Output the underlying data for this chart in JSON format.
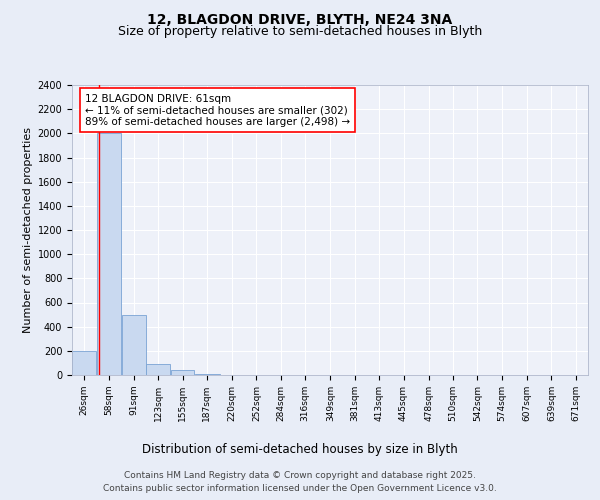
{
  "title1": "12, BLAGDON DRIVE, BLYTH, NE24 3NA",
  "title2": "Size of property relative to semi-detached houses in Blyth",
  "xlabel": "Distribution of semi-detached houses by size in Blyth",
  "ylabel": "Number of semi-detached properties",
  "bins": [
    26,
    58,
    91,
    123,
    155,
    187,
    220,
    252,
    284,
    316,
    349,
    381,
    413,
    445,
    478,
    510,
    542,
    574,
    607,
    639,
    671
  ],
  "counts": [
    200,
    2000,
    500,
    90,
    40,
    5,
    3,
    2,
    1,
    1,
    1,
    0,
    0,
    1,
    0,
    0,
    0,
    0,
    0,
    0
  ],
  "bar_color": "#c9d9f0",
  "bar_edge_color": "#7aa3d4",
  "red_line_x": 61,
  "annotation_title": "12 BLAGDON DRIVE: 61sqm",
  "annotation_line1": "← 11% of semi-detached houses are smaller (302)",
  "annotation_line2": "89% of semi-detached houses are larger (2,498) →",
  "ylim": [
    0,
    2400
  ],
  "yticks": [
    0,
    200,
    400,
    600,
    800,
    1000,
    1200,
    1400,
    1600,
    1800,
    2000,
    2200,
    2400
  ],
  "bg_color": "#e8edf7",
  "plot_bg_color": "#eef1f9",
  "footer1": "Contains HM Land Registry data © Crown copyright and database right 2025.",
  "footer2": "Contains public sector information licensed under the Open Government Licence v3.0.",
  "title1_fontsize": 10,
  "title2_fontsize": 9,
  "xlabel_fontsize": 8.5,
  "ylabel_fontsize": 8,
  "tick_fontsize": 7,
  "annotation_fontsize": 7.5,
  "footer_fontsize": 6.5
}
